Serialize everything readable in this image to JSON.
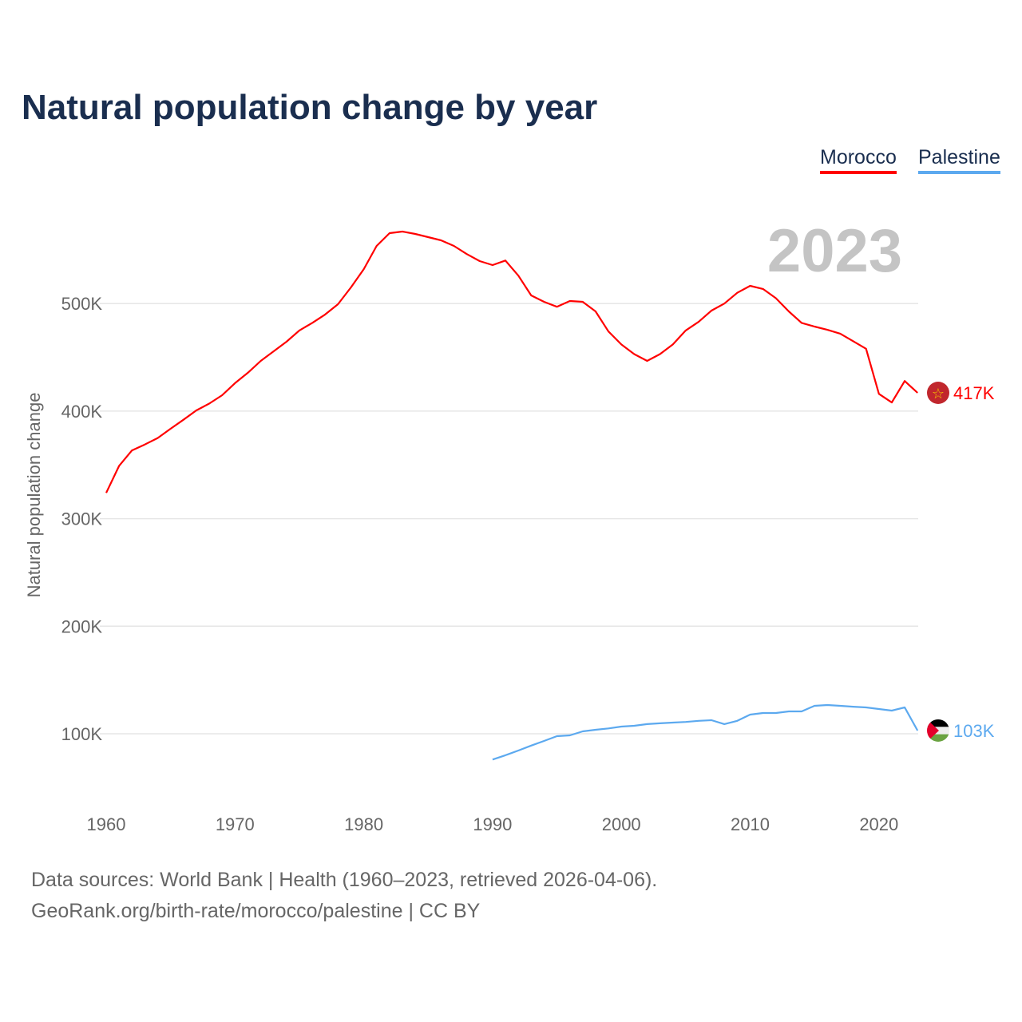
{
  "chart_data": {
    "type": "line",
    "title": "Natural population change by year",
    "ylabel": "Natural population change",
    "xlabel": "",
    "xlim": [
      1960,
      2023
    ],
    "ylim_k": [
      0,
      600
    ],
    "y_ticks": [
      {
        "v": 100,
        "label": "100K"
      },
      {
        "v": 200,
        "label": "200K"
      },
      {
        "v": 300,
        "label": "300K"
      },
      {
        "v": 400,
        "label": "400K"
      },
      {
        "v": 500,
        "label": "500K"
      }
    ],
    "x_ticks": [
      {
        "v": 1960,
        "label": "1960"
      },
      {
        "v": 1970,
        "label": "1970"
      },
      {
        "v": 1980,
        "label": "1980"
      },
      {
        "v": 1990,
        "label": "1990"
      },
      {
        "v": 2000,
        "label": "2000"
      },
      {
        "v": 2010,
        "label": "2010"
      },
      {
        "v": 2020,
        "label": "2020"
      }
    ],
    "year_label": "2023",
    "grid": true,
    "legend_position": "top-right",
    "series": [
      {
        "name": "Morocco",
        "color": "#ff0000",
        "end_label": "417K",
        "start_year": 1960,
        "values_k": [
          324,
          349,
          363.5,
          369,
          375,
          383.6,
          392,
          400.7,
          407,
          414.8,
          426,
          435.6,
          446.7,
          455.6,
          464.5,
          475,
          482,
          489.8,
          499.4,
          515,
          532,
          553.6,
          565.5,
          567,
          564.7,
          561.8,
          558.8,
          553.6,
          546,
          539.5,
          535.8,
          540,
          526,
          507.6,
          501.6,
          497,
          502.4,
          501.6,
          492.7,
          474,
          462,
          453,
          446.7,
          453,
          462,
          475,
          483,
          493.5,
          500,
          510,
          516.5,
          513.6,
          505,
          492.7,
          482,
          478.6,
          475.6,
          472,
          465,
          458,
          416,
          408,
          428,
          417
        ]
      },
      {
        "name": "Palestine",
        "color": "#5ca9ef",
        "end_label": "103K",
        "start_year": 1990,
        "values_k": [
          76,
          80,
          84.4,
          89,
          93.3,
          97.8,
          98.5,
          102.2,
          103.7,
          105,
          106.7,
          107.4,
          109,
          109.7,
          110.4,
          111,
          112,
          112.6,
          109,
          112,
          117.8,
          119.3,
          119.3,
          120.8,
          120.8,
          126,
          126.7,
          126,
          125.2,
          124.5,
          123,
          121.5,
          124.5,
          103
        ]
      }
    ]
  },
  "legend": {
    "morocco": "Morocco",
    "palestine": "Palestine"
  },
  "footer": {
    "line1": "Data sources: World Bank | Health (1960–2023, retrieved 2026-04-06).",
    "line2": "GeoRank.org/birth-rate/morocco/palestine | CC BY"
  }
}
